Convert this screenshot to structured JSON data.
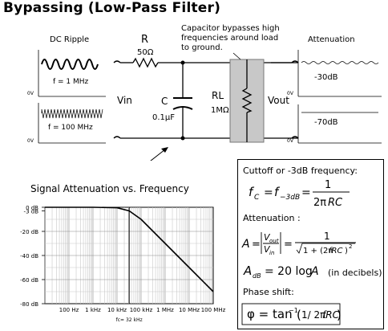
{
  "title": "Bypassing (Low-Pass Filter)",
  "circuit": {
    "dc_ripple_label": "DC Ripple",
    "resistor_name": "R",
    "resistor_value": "50Ω",
    "note_line1": "Capacitor bypasses high",
    "note_line2": "frequencies around load",
    "note_line3": "to ground.",
    "attenuation_label": "Attenuation",
    "freq_top": "f = 1 MHz",
    "freq_bottom": "f = 100 MHz",
    "zero_v": "0V",
    "vin": "Vin",
    "cap_name": "C",
    "cap_value": "0.1μF",
    "load_name": "RL",
    "load_value": "1MΩ",
    "vout": "Vout",
    "atten_top": "-30dB",
    "atten_bottom": "-70dB"
  },
  "chart_title": "Signal Attenuation vs. Frequency",
  "chart_data": {
    "type": "line",
    "title": "Signal Attenuation vs. Frequency",
    "x_scale": "log",
    "x_ticks": [
      "100 Hz",
      "1 kHz",
      "10 kHz",
      "100 kHz",
      "1 MHz",
      "10 MHz",
      "100 MHz"
    ],
    "y_ticks": [
      "0 dB",
      "-3 dB",
      "-20 dB",
      "-40 dB",
      "-60 dB",
      "-80 dB"
    ],
    "ylim": [
      -80,
      0
    ],
    "xlim_hz": [
      10,
      100000000
    ],
    "cutoff_label": "fc= 32 kHz",
    "cutoff_hz": 32000,
    "grid": true,
    "series": [
      {
        "x": [
          10,
          100,
          1000,
          10000,
          32000,
          100000,
          1000000,
          10000000,
          100000000
        ],
        "y": [
          0,
          0,
          0,
          -0.4,
          -3,
          -10,
          -30,
          -50,
          -70
        ]
      }
    ]
  },
  "formula_box": {
    "cutoff_heading": "Cuttoff or -3dB frequency:",
    "attenuation_heading": "Attenuation :",
    "decibels_note": "(in decibels)",
    "phase_heading": "Phase shift:"
  }
}
